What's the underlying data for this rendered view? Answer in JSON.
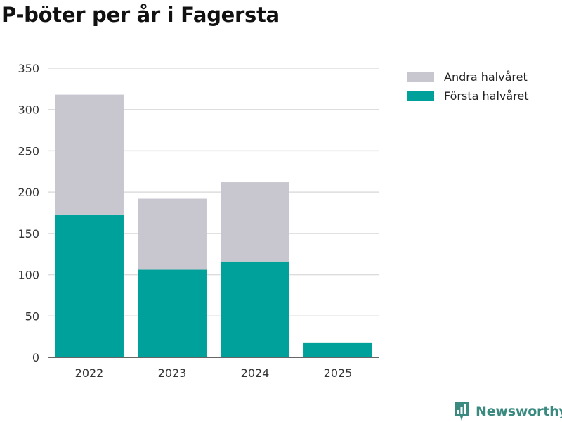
{
  "title": "P-böter per år i Fagersta",
  "brand": {
    "name": "Newsworthy",
    "icon": "newsworthy-logo-icon"
  },
  "colors": {
    "first_half": "#00a19a",
    "second_half": "#c8c7d0",
    "grid": "#dddddd",
    "axis": "#333333"
  },
  "legend": [
    {
      "label": "Andra halvåret",
      "color": "#c8c7d0"
    },
    {
      "label": "Första halvåret",
      "color": "#00a19a"
    }
  ],
  "chart_data": {
    "type": "bar",
    "stacked": true,
    "title": "P-böter per år i Fagersta",
    "categories": [
      "2022",
      "2023",
      "2024",
      "2025"
    ],
    "series": [
      {
        "name": "Första halvåret",
        "values": [
          173,
          106,
          116,
          18
        ]
      },
      {
        "name": "Andra halvåret",
        "values": [
          145,
          86,
          96,
          0
        ]
      }
    ],
    "ylim": [
      0,
      350
    ],
    "yticks": [
      0,
      50,
      100,
      150,
      200,
      250,
      300,
      350
    ],
    "grid": true,
    "legend_position": "top-right",
    "xlabel": "",
    "ylabel": ""
  }
}
